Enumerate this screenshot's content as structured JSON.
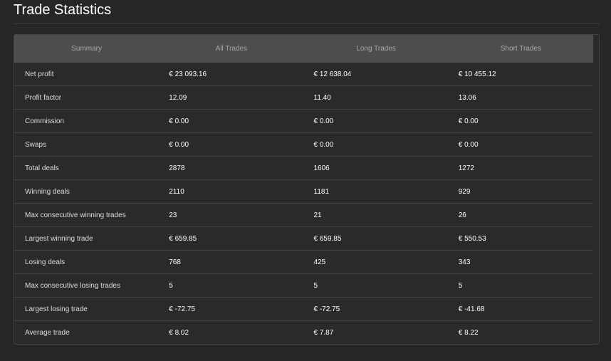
{
  "title": "Trade Statistics",
  "columns": [
    "Summary",
    "All Trades",
    "Long Trades",
    "Short Trades"
  ],
  "rows": [
    [
      "Net profit",
      "€ 23 093.16",
      "€ 12 638.04",
      "€ 10 455.12"
    ],
    [
      "Profit factor",
      "12.09",
      "11.40",
      "13.06"
    ],
    [
      "Commission",
      "€ 0.00",
      "€ 0.00",
      "€ 0.00"
    ],
    [
      "Swaps",
      "€ 0.00",
      "€ 0.00",
      "€ 0.00"
    ],
    [
      "Total deals",
      "2878",
      "1606",
      "1272"
    ],
    [
      "Winning deals",
      "2110",
      "1181",
      "929"
    ],
    [
      "Max consecutive winning trades",
      "23",
      "21",
      "26"
    ],
    [
      "Largest winning trade",
      "€ 659.85",
      "€ 659.85",
      "€ 550.53"
    ],
    [
      "Losing deals",
      "768",
      "425",
      "343"
    ],
    [
      "Max consecutive losing trades",
      "5",
      "5",
      "5"
    ],
    [
      "Largest losing trade",
      "€ -72.75",
      "€ -72.75",
      "€ -41.68"
    ],
    [
      "Average trade",
      "€ 8.02",
      "€ 7.87",
      "€ 8.22"
    ]
  ]
}
